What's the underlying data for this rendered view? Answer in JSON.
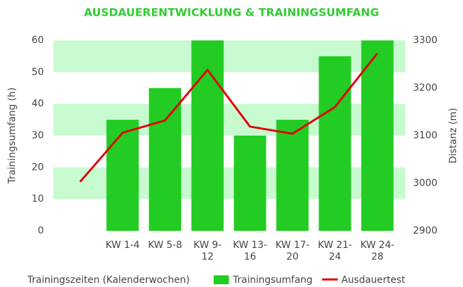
{
  "chart_data": {
    "type": "bar_line",
    "title": "AUSDAUERENTWICKLUNG & TRAININGSUMFANG",
    "xlabel": "Trainingszeiten (Kalenderwochen)",
    "ylabel": "Trainingsumfang (h)",
    "y2label": "Distanz (m)",
    "categories": [
      null,
      "KW 1-4",
      "KW 5-8",
      "KW 9-12",
      "KW 13-16",
      "KW 17-20",
      "KW 21-24",
      "KW 24-28"
    ],
    "series": [
      {
        "name": "Trainingsumfang",
        "type": "bar",
        "color": "#22cc22",
        "values": [
          null,
          35,
          45,
          60,
          30,
          35,
          55,
          60
        ]
      },
      {
        "name": "Ausdauertest",
        "type": "line",
        "axis": "y2",
        "color": "#e00000",
        "values": [
          3003,
          3106,
          3132,
          3238,
          3119,
          3104,
          3160,
          3273
        ]
      }
    ],
    "ylim": [
      0,
      60
    ],
    "yticks": [
      0,
      10,
      20,
      30,
      40,
      50,
      60
    ],
    "y2lim": [
      2900,
      3300
    ],
    "y2ticks": [
      2900,
      3000,
      3100,
      3200,
      3300
    ],
    "grid": true,
    "grid_color": "#c8fad0",
    "legend": "bottom"
  }
}
